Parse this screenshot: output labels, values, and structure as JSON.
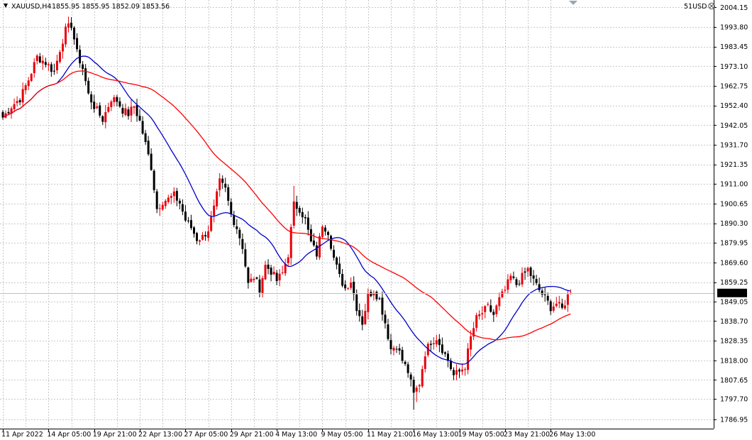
{
  "header": {
    "symbol": "XAUUSD,H4",
    "ohlc": "1855.95 1855.95 1852.09 1853.56",
    "watermark": "51USD"
  },
  "colors": {
    "bull": "#e8000b",
    "bear": "#000000",
    "ma_fast": "#0000c8",
    "ma_slow": "#ff0000",
    "grid": "#c8c8c8",
    "price_tag_bg": "#000000",
    "price_tag_text": "#ffffff",
    "bid_line": "#bfbfbf"
  },
  "chart_data": {
    "type": "candlestick",
    "title": "XAUUSD,H4",
    "grid": true,
    "ylim": [
      1782.0,
      2008.0
    ],
    "yticks": [
      1786.95,
      1797.7,
      1807.65,
      1818.0,
      1828.35,
      1838.7,
      1849.05,
      1859.25,
      1869.6,
      1879.95,
      1890.3,
      1900.65,
      1911.0,
      1921.35,
      1931.7,
      1942.05,
      1952.4,
      1962.75,
      1973.1,
      1983.45,
      1993.8,
      2004.15
    ],
    "xticks": [
      {
        "label": "11 Apr 2022",
        "index": 0
      },
      {
        "label": "14 Apr 05:00",
        "index": 16
      },
      {
        "label": "19 Apr 21:00",
        "index": 32
      },
      {
        "label": "22 Apr 13:00",
        "index": 48
      },
      {
        "label": "27 Apr 05:00",
        "index": 64
      },
      {
        "label": "29 Apr 21:00",
        "index": 80
      },
      {
        "label": "4 May 13:00",
        "index": 96
      },
      {
        "label": "9 May 05:00",
        "index": 112
      },
      {
        "label": "11 May 21:00",
        "index": 128
      },
      {
        "label": "16 May 13:00",
        "index": 144
      },
      {
        "label": "19 May 05:00",
        "index": 160
      },
      {
        "label": "23 May 21:00",
        "index": 176
      },
      {
        "label": "26 May 13:00",
        "index": 192
      }
    ],
    "current_price": 1853.56,
    "current_price_label": "1853.56",
    "candle_count": 200,
    "close_anchors": [
      [
        0,
        1946
      ],
      [
        3,
        1952
      ],
      [
        6,
        1956
      ],
      [
        9,
        1966
      ],
      [
        12,
        1978
      ],
      [
        15,
        1975
      ],
      [
        18,
        1970
      ],
      [
        20,
        1982
      ],
      [
        22,
        1992
      ],
      [
        24,
        1995
      ],
      [
        26,
        1980
      ],
      [
        28,
        1972
      ],
      [
        30,
        1958
      ],
      [
        32,
        1952
      ],
      [
        35,
        1945
      ],
      [
        38,
        1956
      ],
      [
        40,
        1955
      ],
      [
        42,
        1950
      ],
      [
        44,
        1948
      ],
      [
        46,
        1952
      ],
      [
        48,
        1944
      ],
      [
        50,
        1932
      ],
      [
        52,
        1920
      ],
      [
        54,
        1898
      ],
      [
        56,
        1902
      ],
      [
        58,
        1903
      ],
      [
        60,
        1905
      ],
      [
        62,
        1901
      ],
      [
        64,
        1892
      ],
      [
        66,
        1888
      ],
      [
        68,
        1882
      ],
      [
        70,
        1883
      ],
      [
        72,
        1887
      ],
      [
        74,
        1898
      ],
      [
        76,
        1912
      ],
      [
        78,
        1908
      ],
      [
        80,
        1895
      ],
      [
        82,
        1888
      ],
      [
        84,
        1878
      ],
      [
        86,
        1858
      ],
      [
        88,
        1862
      ],
      [
        90,
        1856
      ],
      [
        92,
        1868
      ],
      [
        94,
        1865
      ],
      [
        96,
        1860
      ],
      [
        98,
        1864
      ],
      [
        100,
        1874
      ],
      [
        102,
        1900
      ],
      [
        104,
        1898
      ],
      [
        106,
        1892
      ],
      [
        108,
        1880
      ],
      [
        110,
        1874
      ],
      [
        112,
        1890
      ],
      [
        114,
        1886
      ],
      [
        116,
        1872
      ],
      [
        118,
        1862
      ],
      [
        120,
        1856
      ],
      [
        122,
        1860
      ],
      [
        124,
        1846
      ],
      [
        126,
        1838
      ],
      [
        128,
        1852
      ],
      [
        130,
        1855
      ],
      [
        132,
        1850
      ],
      [
        134,
        1838
      ],
      [
        136,
        1824
      ],
      [
        138,
        1826
      ],
      [
        140,
        1818
      ],
      [
        142,
        1812
      ],
      [
        144,
        1800
      ],
      [
        146,
        1806
      ],
      [
        148,
        1822
      ],
      [
        150,
        1828
      ],
      [
        152,
        1830
      ],
      [
        154,
        1824
      ],
      [
        156,
        1818
      ],
      [
        158,
        1810
      ],
      [
        160,
        1812
      ],
      [
        162,
        1815
      ],
      [
        164,
        1830
      ],
      [
        166,
        1840
      ],
      [
        168,
        1843
      ],
      [
        170,
        1846
      ],
      [
        172,
        1842
      ],
      [
        174,
        1850
      ],
      [
        176,
        1855
      ],
      [
        178,
        1862
      ],
      [
        180,
        1858
      ],
      [
        182,
        1862
      ],
      [
        184,
        1866
      ],
      [
        186,
        1860
      ],
      [
        188,
        1855
      ],
      [
        190,
        1851
      ],
      [
        192,
        1846
      ],
      [
        194,
        1848
      ],
      [
        196,
        1845
      ],
      [
        198,
        1852
      ],
      [
        199,
        1853.56
      ]
    ],
    "highlights": [
      {
        "index": 24,
        "high": 1998
      },
      {
        "index": 102,
        "high": 1910
      },
      {
        "index": 144,
        "low": 1792
      },
      {
        "index": 145,
        "low": 1796
      }
    ],
    "series": [
      {
        "type": "ma",
        "period": 20,
        "color": "#0000c8"
      },
      {
        "type": "ma",
        "period": 50,
        "color": "#ff0000"
      }
    ]
  }
}
